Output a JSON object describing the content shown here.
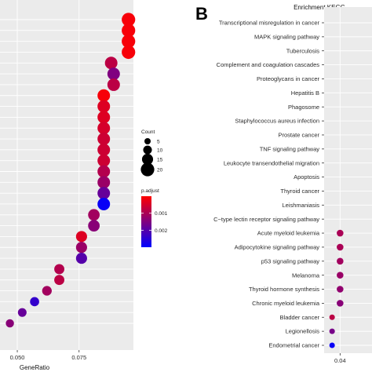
{
  "chart_data": [
    {
      "type": "scatter",
      "panel_label": "",
      "title": "",
      "xlabel": "GeneRatio",
      "ylabel": "",
      "xlim": [
        0.043,
        0.097
      ],
      "x_ticks": [
        "0.050",
        "0.075"
      ],
      "x_tick_values": [
        0.05,
        0.075
      ],
      "grid": true,
      "points": [
        {
          "x": 0.095,
          "count": 20,
          "padj": 0.0001
        },
        {
          "x": 0.095,
          "count": 20,
          "padj": 0.0001
        },
        {
          "x": 0.095,
          "count": 20,
          "padj": 0.0001
        },
        {
          "x": 0.095,
          "count": 20,
          "padj": 0.0001
        },
        {
          "x": 0.088,
          "count": 18,
          "padj": 0.0008
        },
        {
          "x": 0.089,
          "count": 18,
          "padj": 0.0015
        },
        {
          "x": 0.089,
          "count": 18,
          "padj": 0.0008
        },
        {
          "x": 0.085,
          "count": 18,
          "padj": 0.0001
        },
        {
          "x": 0.085,
          "count": 18,
          "padj": 0.0004
        },
        {
          "x": 0.085,
          "count": 18,
          "padj": 0.0004
        },
        {
          "x": 0.085,
          "count": 18,
          "padj": 0.0005
        },
        {
          "x": 0.085,
          "count": 18,
          "padj": 0.0006
        },
        {
          "x": 0.085,
          "count": 18,
          "padj": 0.0006
        },
        {
          "x": 0.085,
          "count": 18,
          "padj": 0.0006
        },
        {
          "x": 0.085,
          "count": 18,
          "padj": 0.0009
        },
        {
          "x": 0.085,
          "count": 18,
          "padj": 0.0012
        },
        {
          "x": 0.085,
          "count": 18,
          "padj": 0.0018
        },
        {
          "x": 0.085,
          "count": 18,
          "padj": 0.0029
        },
        {
          "x": 0.081,
          "count": 16,
          "padj": 0.0011
        },
        {
          "x": 0.081,
          "count": 16,
          "padj": 0.0014
        },
        {
          "x": 0.076,
          "count": 15,
          "padj": 0.0004
        },
        {
          "x": 0.076,
          "count": 15,
          "padj": 0.0012
        },
        {
          "x": 0.076,
          "count": 15,
          "padj": 0.002
        },
        {
          "x": 0.067,
          "count": 13,
          "padj": 0.0009
        },
        {
          "x": 0.067,
          "count": 13,
          "padj": 0.0008
        },
        {
          "x": 0.062,
          "count": 12,
          "padj": 0.0011
        },
        {
          "x": 0.057,
          "count": 11,
          "padj": 0.0024
        },
        {
          "x": 0.052,
          "count": 10,
          "padj": 0.0018
        },
        {
          "x": 0.047,
          "count": 9,
          "padj": 0.0014
        }
      ],
      "legend": {
        "count": {
          "title": "Count",
          "values": [
            5,
            10,
            15,
            20
          ]
        },
        "padj": {
          "title": "p.adjust",
          "ticks": [
            "0.001",
            "0.002"
          ],
          "tick_values": [
            0.001,
            0.002
          ],
          "range": [
            0.0,
            0.003
          ]
        }
      },
      "colors": {
        "low": "#ff0000",
        "high": "#0000ff"
      }
    },
    {
      "type": "scatter",
      "panel_label": "B",
      "title": "Enrichment KEGG",
      "xlabel": "",
      "ylabel": "",
      "xlim": [
        0.03,
        0.06
      ],
      "x_ticks": [
        "0.04"
      ],
      "x_tick_values": [
        0.04
      ],
      "grid": true,
      "categories": [
        "Transcriptional misregulation in cancer",
        "MAPK signaling pathway",
        "Tuberculosis",
        "Complement and coagulation cascades",
        "Proteoglycans in cancer",
        "Hepatitis B",
        "Phagosome",
        "Staphylococcus aureus infection",
        "Prostate cancer",
        "TNF signaling pathway",
        "Leukocyte transendothelial migration",
        "Apoptosis",
        "Thyroid cancer",
        "Leishmaniasis",
        "C−type lectin receptor signaling pathway",
        "Acute myeloid leukemia",
        "Adipocytokine signaling pathway",
        "p53 signaling pathway",
        "Melanoma",
        "Thyroid hormone synthesis",
        "Chronic myeloid leukemia",
        "Bladder cancer",
        "Legionellosis",
        "Endometrial cancer"
      ],
      "points": [
        {
          "category": "Acute myeloid leukemia",
          "x": 0.04,
          "count": 9,
          "padj": 0.001
        },
        {
          "category": "Adipocytokine signaling pathway",
          "x": 0.04,
          "count": 9,
          "padj": 0.001
        },
        {
          "category": "p53 signaling pathway",
          "x": 0.04,
          "count": 9,
          "padj": 0.0011
        },
        {
          "category": "Melanoma",
          "x": 0.04,
          "count": 9,
          "padj": 0.0012
        },
        {
          "category": "Thyroid hormone synthesis",
          "x": 0.04,
          "count": 9,
          "padj": 0.0013
        },
        {
          "category": "Chronic myeloid leukemia",
          "x": 0.04,
          "count": 9,
          "padj": 0.0014
        },
        {
          "category": "Bladder cancer",
          "x": 0.035,
          "count": 6,
          "padj": 0.0008
        },
        {
          "category": "Legionellosis",
          "x": 0.035,
          "count": 6,
          "padj": 0.0016
        },
        {
          "category": "Endometrial cancer",
          "x": 0.035,
          "count": 6,
          "padj": 0.0029
        }
      ]
    }
  ]
}
